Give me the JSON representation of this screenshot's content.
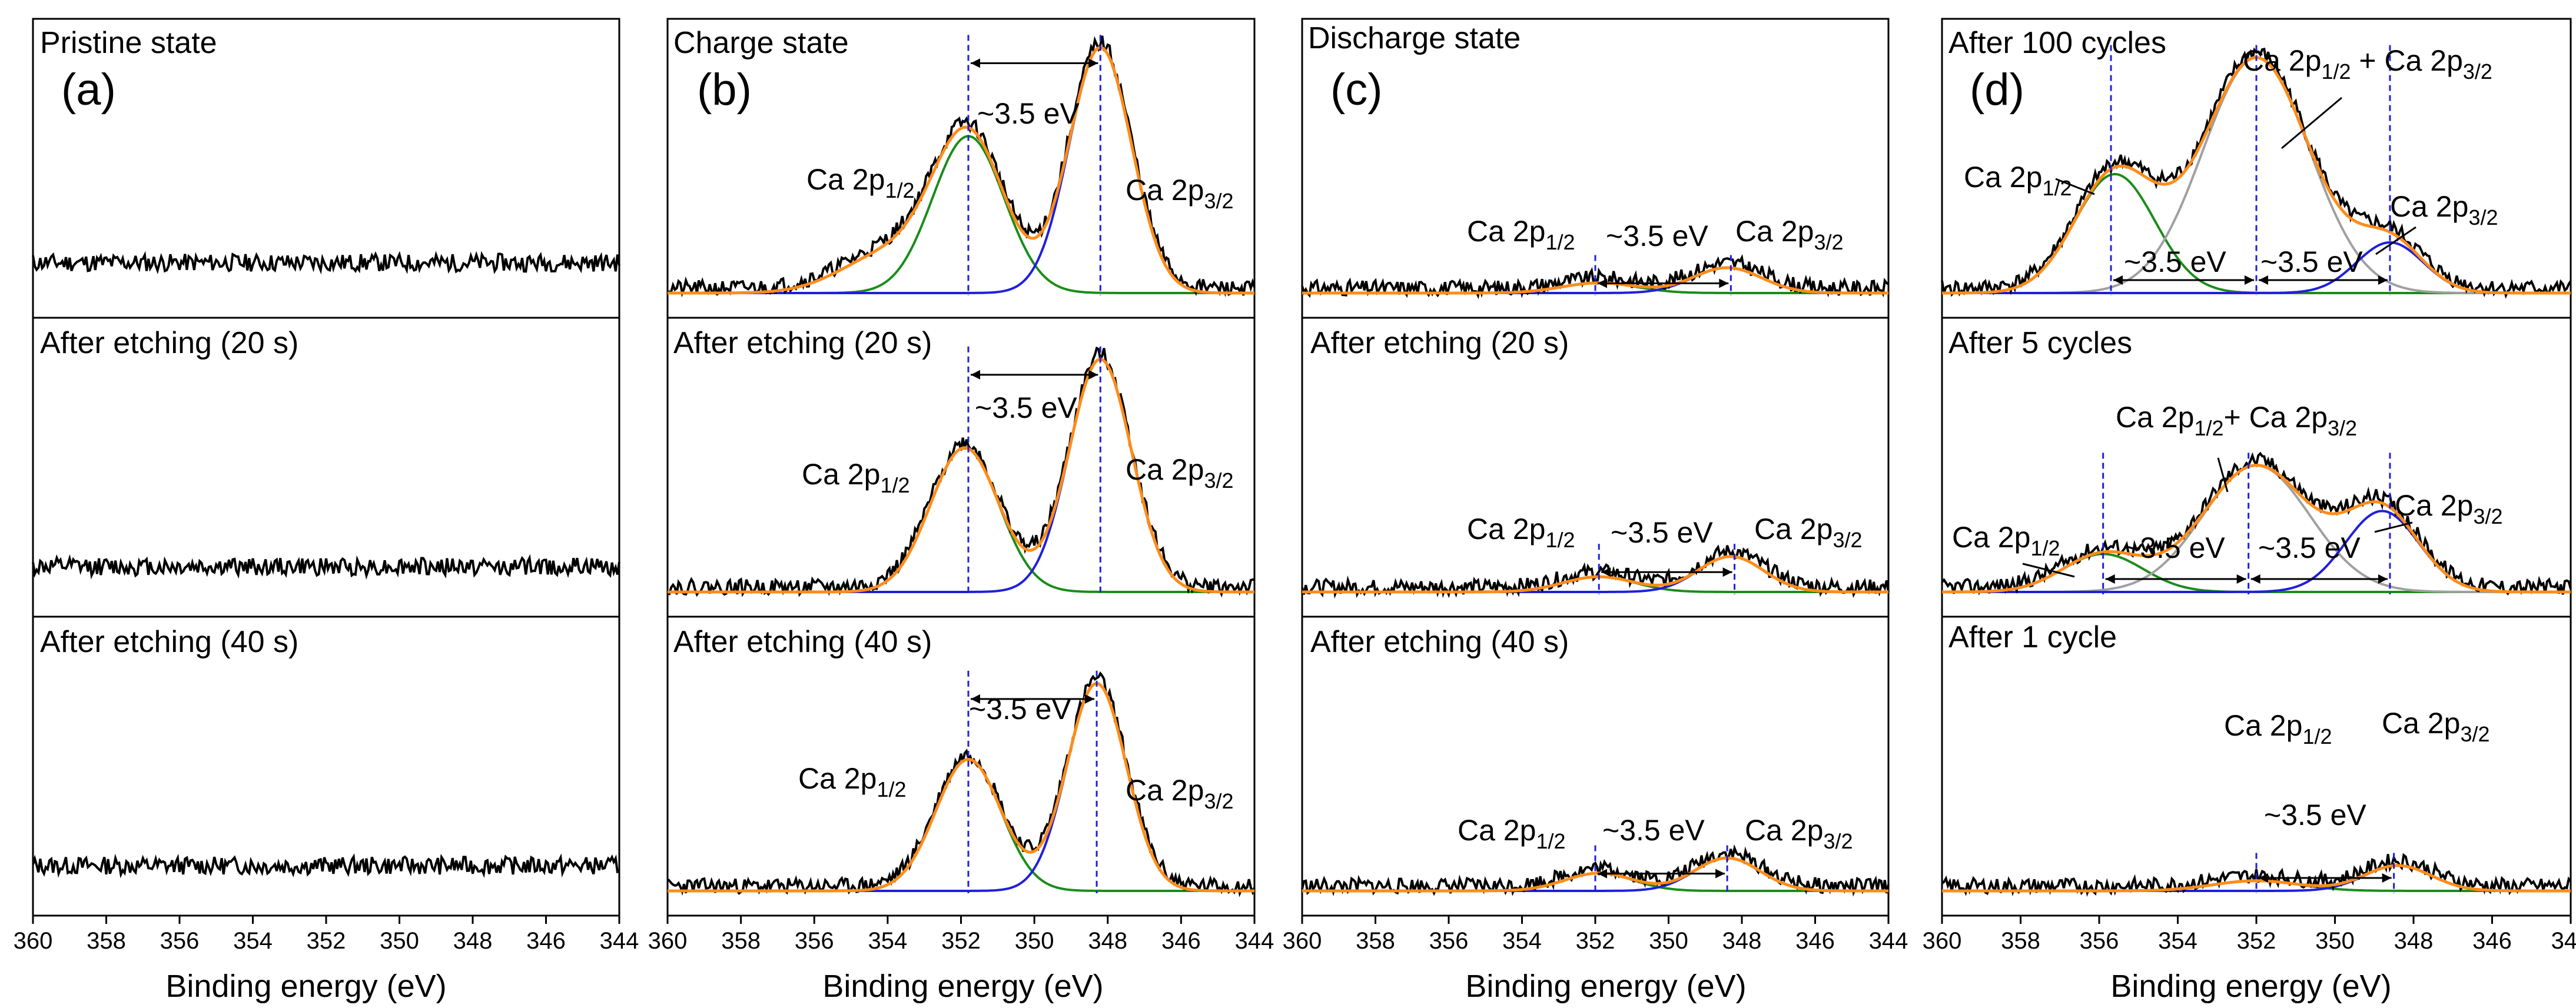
{
  "figure": {
    "xlabel": "Binding energy (eV)",
    "tick_values": [
      360,
      358,
      356,
      354,
      352,
      350,
      348,
      346,
      344
    ],
    "tick_labels": [
      "360",
      "358",
      "356",
      "354",
      "352",
      "350",
      "348",
      "346",
      "344"
    ],
    "colors": {
      "raw": "#000000",
      "envelope": "#ff8c1a",
      "p12": "#1a8c1a",
      "p32": "#1f1fdc",
      "mixed": "#a0a0a0",
      "guide": "#1f1fdc"
    }
  },
  "chart_data": [
    {
      "type": "line",
      "id": "a",
      "panel_label": "(a)",
      "x_range": [
        360,
        344
      ],
      "xlabel": "Binding energy (eV)",
      "subplots": [
        {
          "title": "Pristine state",
          "peaks": [],
          "raw": {
            "baseline": 0.12,
            "noise": 0.035,
            "seed": 11
          }
        },
        {
          "title": "After etching (20 s)",
          "peaks": [],
          "raw": {
            "baseline": 0.1,
            "noise": 0.035,
            "seed": 12
          }
        },
        {
          "title": "After etching (40 s)",
          "peaks": [],
          "raw": {
            "baseline": 0.1,
            "noise": 0.035,
            "seed": 13
          }
        }
      ]
    },
    {
      "type": "line",
      "id": "b",
      "panel_label": "(b)",
      "x_range": [
        360,
        344
      ],
      "xlabel": "Binding energy (eV)",
      "subplots": [
        {
          "title": "Charge state",
          "peaks": [
            {
              "name": "Ca 2p1/2",
              "center": 351.8,
              "height": 0.62,
              "fwhm": 2.3
            },
            {
              "name": "Ca 2p3/2",
              "center": 348.2,
              "height": 0.97,
              "fwhm": 2.0
            }
          ],
          "raw": {
            "baseline": 0.02,
            "noise": 0.03,
            "seed": 21,
            "shoulder": {
              "center": 354.0,
              "height": 0.15,
              "fwhm": 3.0
            }
          },
          "guides": [
            351.8,
            348.2
          ],
          "splitting": "~3.5 eV",
          "labels": {
            "p12": {
              "text": "Ca 2p",
              "sub": "1/2"
            },
            "p32": {
              "text": "Ca 2p",
              "sub": "3/2"
            }
          }
        },
        {
          "title": "After etching (20 s)",
          "peaks": [
            {
              "name": "Ca 2p1/2",
              "center": 351.9,
              "height": 0.57,
              "fwhm": 2.2
            },
            {
              "name": "Ca 2p3/2",
              "center": 348.2,
              "height": 0.92,
              "fwhm": 2.0
            }
          ],
          "raw": {
            "baseline": 0.02,
            "noise": 0.03,
            "seed": 22
          },
          "guides": [
            351.8,
            348.2
          ],
          "splitting": "~3.5 eV",
          "labels": {
            "p12": {
              "text": "Ca 2p",
              "sub": "1/2"
            },
            "p32": {
              "text": "Ca 2p",
              "sub": "3/2"
            }
          }
        },
        {
          "title": "After etching (40 s)",
          "peaks": [
            {
              "name": "Ca 2p1/2",
              "center": 351.8,
              "height": 0.52,
              "fwhm": 2.1
            },
            {
              "name": "Ca 2p3/2",
              "center": 348.3,
              "height": 0.82,
              "fwhm": 1.9
            }
          ],
          "raw": {
            "baseline": 0.02,
            "noise": 0.03,
            "seed": 23
          },
          "guides": [
            351.8,
            348.3
          ],
          "splitting": "~3.5 eV",
          "labels": {
            "p12": {
              "text": "Ca 2p",
              "sub": "1/2"
            },
            "p32": {
              "text": "Ca 2p",
              "sub": "3/2"
            }
          }
        }
      ]
    },
    {
      "type": "line",
      "id": "c",
      "panel_label": "(c)",
      "x_range": [
        360,
        344
      ],
      "xlabel": "Binding energy (eV)",
      "subplots": [
        {
          "title": "Discharge state",
          "peaks": [
            {
              "name": "Ca 2p1/2",
              "center": 351.9,
              "height": 0.04,
              "fwhm": 2.4
            },
            {
              "name": "Ca 2p3/2",
              "center": 348.4,
              "height": 0.1,
              "fwhm": 2.2
            }
          ],
          "raw": {
            "baseline": 0.02,
            "noise": 0.03,
            "seed": 31
          },
          "guides": [
            352.0,
            348.3
          ],
          "splitting": "~3.5 eV",
          "labels": {
            "p12": {
              "text": "Ca 2p",
              "sub": "1/2"
            },
            "p32": {
              "text": "Ca 2p",
              "sub": "3/2"
            }
          }
        },
        {
          "title": "After etching (20 s)",
          "peaks": [
            {
              "name": "Ca 2p1/2",
              "center": 351.9,
              "height": 0.06,
              "fwhm": 2.3
            },
            {
              "name": "Ca 2p3/2",
              "center": 348.3,
              "height": 0.14,
              "fwhm": 2.1
            }
          ],
          "raw": {
            "baseline": 0.02,
            "noise": 0.03,
            "seed": 32
          },
          "guides": [
            351.9,
            348.2
          ],
          "splitting": "~3.5 eV",
          "labels": {
            "p12": {
              "text": "Ca 2p",
              "sub": "1/2"
            },
            "p32": {
              "text": "Ca 2p",
              "sub": "3/2"
            }
          }
        },
        {
          "title": "After etching (40 s)",
          "peaks": [
            {
              "name": "Ca 2p1/2",
              "center": 351.9,
              "height": 0.07,
              "fwhm": 2.2
            },
            {
              "name": "Ca 2p3/2",
              "center": 348.4,
              "height": 0.13,
              "fwhm": 2.1
            }
          ],
          "raw": {
            "baseline": 0.02,
            "noise": 0.03,
            "seed": 33
          },
          "guides": [
            352.0,
            348.4
          ],
          "splitting": "~3.5 eV",
          "labels": {
            "p12": {
              "text": "Ca 2p",
              "sub": "1/2"
            },
            "p32": {
              "text": "Ca 2p",
              "sub": "3/2"
            }
          }
        }
      ]
    },
    {
      "type": "line",
      "id": "d",
      "panel_label": "(d)",
      "x_range": [
        360,
        344
      ],
      "xlabel": "Binding energy (eV)",
      "subplots": [
        {
          "title": "After 100 cycles",
          "peaks": [
            {
              "name": "Ca 2p1/2",
              "center": 355.6,
              "height": 0.47,
              "fwhm": 2.4
            },
            {
              "name": "Ca 2p1/2 + Ca 2p3/2",
              "center": 352.0,
              "height": 0.93,
              "fwhm": 3.2
            },
            {
              "name": "Ca 2p3/2",
              "center": 348.6,
              "height": 0.2,
              "fwhm": 2.0
            }
          ],
          "raw": {
            "baseline": 0.02,
            "noise": 0.03,
            "seed": 41
          },
          "guides": [
            355.7,
            352.0,
            348.6
          ],
          "splitting": "~3.5 eV",
          "labels": {
            "p12": {
              "text": "Ca 2p",
              "sub": "1/2"
            },
            "p32": {
              "text": "Ca 2p",
              "sub": "3/2"
            }
          }
        },
        {
          "title": "After 5 cycles",
          "peaks": [
            {
              "name": "Ca 2p1/2",
              "center": 355.9,
              "height": 0.15,
              "fwhm": 2.4
            },
            {
              "name": "Ca 2p1/2+ Ca 2p3/2",
              "center": 352.0,
              "height": 0.5,
              "fwhm": 3.2
            },
            {
              "name": "Ca 2p3/2",
              "center": 348.8,
              "height": 0.32,
              "fwhm": 2.2
            }
          ],
          "raw": {
            "baseline": 0.02,
            "noise": 0.03,
            "seed": 42
          },
          "guides": [
            355.9,
            352.2,
            348.6
          ],
          "splitting": "~3.5 eV",
          "labels": {
            "p12": {
              "text": "Ca 2p",
              "sub": "1/2"
            },
            "p32": {
              "text": "Ca 2p",
              "sub": "3/2"
            }
          }
        },
        {
          "title": "After 1 cycle",
          "peaks": [
            {
              "name": "Ca 2p1/2",
              "center": 352.0,
              "height": 0.04,
              "fwhm": 2.6
            },
            {
              "name": "Ca 2p3/2",
              "center": 348.4,
              "height": 0.1,
              "fwhm": 2.0
            }
          ],
          "raw": {
            "baseline": 0.02,
            "noise": 0.03,
            "seed": 43
          },
          "guides": [
            352.0,
            348.5
          ],
          "splitting": "~3.5 eV",
          "labels": {
            "p12": {
              "text": "Ca 2p",
              "sub": "1/2"
            },
            "p32": {
              "text": "Ca 2p",
              "sub": "3/2"
            }
          }
        }
      ]
    }
  ]
}
